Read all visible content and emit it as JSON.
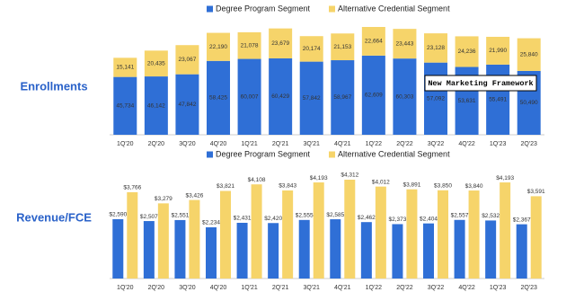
{
  "chart_data": [
    {
      "type": "bar",
      "stacked": true,
      "title": "Enrollments",
      "categories": [
        "1Q'20",
        "2Q'20",
        "3Q'20",
        "4Q'20",
        "1Q'21",
        "2Q'21",
        "3Q'21",
        "4Q'21",
        "1Q'22",
        "2Q'22",
        "3Q'22",
        "4Q'22",
        "1Q'23",
        "2Q'23"
      ],
      "series": [
        {
          "name": "Degree Program Segment",
          "color": "#2f6fd6",
          "values": [
            45734,
            46142,
            47842,
            58425,
            60007,
            60429,
            57842,
            58967,
            62609,
            60303,
            57092,
            53631,
            55491,
            50490
          ],
          "value_labels": [
            "45,734",
            "46,142",
            "47,842",
            "58,425",
            "60,007",
            "60,429",
            "57,842",
            "58,967",
            "62,609",
            "60,303",
            "57,092",
            "53,631",
            "55,491",
            "50,490"
          ]
        },
        {
          "name": "Alternative Credential Segment",
          "color": "#f6d46a",
          "values": [
            15141,
            20435,
            23067,
            22190,
            21078,
            23679,
            20174,
            21153,
            22664,
            23443,
            23128,
            24236,
            21990,
            25840
          ],
          "value_labels": [
            "15,141",
            "20,435",
            "23,067",
            "22,190",
            "21,078",
            "23,679",
            "20,174",
            "21,153",
            "22,664",
            "23,443",
            "23,128",
            "24,236",
            "21,990",
            "25,840"
          ]
        }
      ],
      "annotation": "New Marketing Framework"
    },
    {
      "type": "bar",
      "stacked": false,
      "title": "Revenue/FCE",
      "categories": [
        "1Q'20",
        "2Q'20",
        "3Q'20",
        "4Q'20",
        "1Q'21",
        "2Q'21",
        "3Q'21",
        "4Q'21",
        "1Q'22",
        "2Q'22",
        "3Q'22",
        "4Q'22",
        "1Q'23",
        "2Q'23"
      ],
      "series": [
        {
          "name": "Degree Program Segment",
          "color": "#2f6fd6",
          "values": [
            2590,
            2507,
            2551,
            2234,
            2431,
            2420,
            2555,
            2585,
            2462,
            2373,
            2404,
            2557,
            2532,
            2367
          ],
          "value_labels": [
            "$2,590",
            "$2,507",
            "$2,551",
            "$2,234",
            "$2,431",
            "$2,420",
            "$2,555",
            "$2,585",
            "$2,462",
            "$2,373",
            "$2,404",
            "$2,557",
            "$2,532",
            "$2,367"
          ]
        },
        {
          "name": "Alternative Credential Segment",
          "color": "#f6d46a",
          "values": [
            3766,
            3279,
            3426,
            3821,
            4108,
            3843,
            4193,
            4312,
            4012,
            3891,
            3850,
            3840,
            4193,
            3591
          ],
          "value_labels": [
            "$3,766",
            "$3,279",
            "$3,426",
            "$3,821",
            "$4,108",
            "$3,843",
            "$4,193",
            "$4,312",
            "$4,012",
            "$3,891",
            "$3,850",
            "$3,840",
            "$4,193",
            "$3,591"
          ]
        }
      ]
    }
  ]
}
